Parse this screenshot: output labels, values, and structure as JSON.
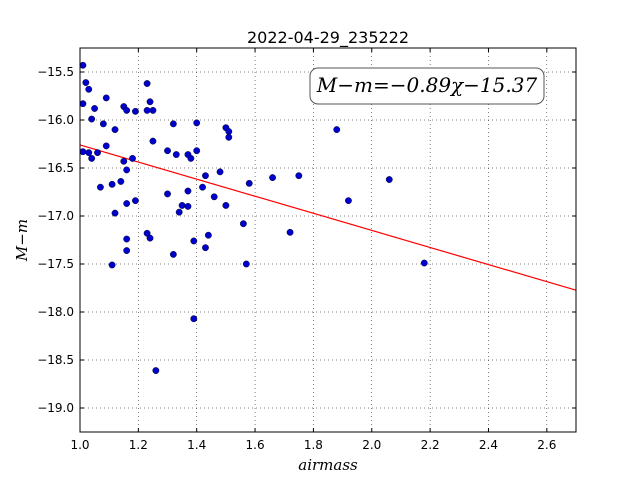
{
  "chart_data": {
    "type": "scatter",
    "title": "2022-04-29_235222",
    "xlabel": "airmass",
    "ylabel": "M−m",
    "xlim": [
      1.0,
      2.7
    ],
    "ylim": [
      -19.25,
      -15.25
    ],
    "x_ticks": [
      "1.0",
      "1.2",
      "1.4",
      "1.6",
      "1.8",
      "2.0",
      "2.2",
      "2.4",
      "2.6"
    ],
    "x_tick_values": [
      1.0,
      1.2,
      1.4,
      1.6,
      1.8,
      2.0,
      2.2,
      2.4,
      2.6
    ],
    "y_ticks": [
      "−15.5",
      "−16.0",
      "−16.5",
      "−17.0",
      "−17.5",
      "−18.0",
      "−18.5",
      "−19.0"
    ],
    "y_tick_values": [
      -15.5,
      -16.0,
      -16.5,
      -17.0,
      -17.5,
      -18.0,
      -18.5,
      -19.0
    ],
    "grid": true,
    "annotation": "M−m=−0.89χ−15.37",
    "fit": {
      "slope": -0.89,
      "intercept": -15.37,
      "color": "#ff0000"
    },
    "point_color": "#0000cc",
    "points": [
      [
        1.01,
        -15.43
      ],
      [
        1.02,
        -15.61
      ],
      [
        1.03,
        -15.68
      ],
      [
        1.01,
        -15.83
      ],
      [
        1.05,
        -15.88
      ],
      [
        1.09,
        -15.77
      ],
      [
        1.04,
        -15.99
      ],
      [
        1.08,
        -16.04
      ],
      [
        1.12,
        -16.1
      ],
      [
        1.15,
        -15.86
      ],
      [
        1.16,
        -15.9
      ],
      [
        1.19,
        -15.91
      ],
      [
        1.23,
        -15.62
      ],
      [
        1.24,
        -15.81
      ],
      [
        1.23,
        -15.9
      ],
      [
        1.25,
        -15.9
      ],
      [
        1.01,
        -16.33
      ],
      [
        1.03,
        -16.34
      ],
      [
        1.04,
        -16.4
      ],
      [
        1.06,
        -16.34
      ],
      [
        1.09,
        -16.27
      ],
      [
        1.15,
        -16.43
      ],
      [
        1.16,
        -16.52
      ],
      [
        1.18,
        -16.4
      ],
      [
        1.25,
        -16.22
      ],
      [
        1.3,
        -16.32
      ],
      [
        1.32,
        -16.04
      ],
      [
        1.33,
        -16.36
      ],
      [
        1.37,
        -16.36
      ],
      [
        1.38,
        -16.4
      ],
      [
        1.4,
        -16.03
      ],
      [
        1.4,
        -16.32
      ],
      [
        1.07,
        -16.7
      ],
      [
        1.11,
        -16.67
      ],
      [
        1.14,
        -16.64
      ],
      [
        1.16,
        -16.87
      ],
      [
        1.19,
        -16.84
      ],
      [
        1.12,
        -16.97
      ],
      [
        1.3,
        -16.77
      ],
      [
        1.34,
        -16.96
      ],
      [
        1.35,
        -16.89
      ],
      [
        1.37,
        -16.9
      ],
      [
        1.37,
        -16.74
      ],
      [
        1.42,
        -16.7
      ],
      [
        1.43,
        -16.58
      ],
      [
        1.46,
        -16.8
      ],
      [
        1.48,
        -16.54
      ],
      [
        1.5,
        -16.89
      ],
      [
        1.5,
        -16.08
      ],
      [
        1.51,
        -16.12
      ],
      [
        1.51,
        -16.18
      ],
      [
        1.16,
        -17.24
      ],
      [
        1.16,
        -17.36
      ],
      [
        1.23,
        -17.18
      ],
      [
        1.24,
        -17.23
      ],
      [
        1.11,
        -17.51
      ],
      [
        1.32,
        -17.4
      ],
      [
        1.39,
        -17.26
      ],
      [
        1.43,
        -17.33
      ],
      [
        1.44,
        -17.2
      ],
      [
        1.56,
        -17.08
      ],
      [
        1.57,
        -17.5
      ],
      [
        1.58,
        -16.66
      ],
      [
        1.66,
        -16.6
      ],
      [
        1.72,
        -17.17
      ],
      [
        1.75,
        -16.58
      ],
      [
        1.88,
        -16.1
      ],
      [
        1.92,
        -16.84
      ],
      [
        2.06,
        -16.62
      ],
      [
        2.18,
        -17.49
      ],
      [
        1.39,
        -18.07
      ],
      [
        1.26,
        -18.61
      ]
    ]
  }
}
